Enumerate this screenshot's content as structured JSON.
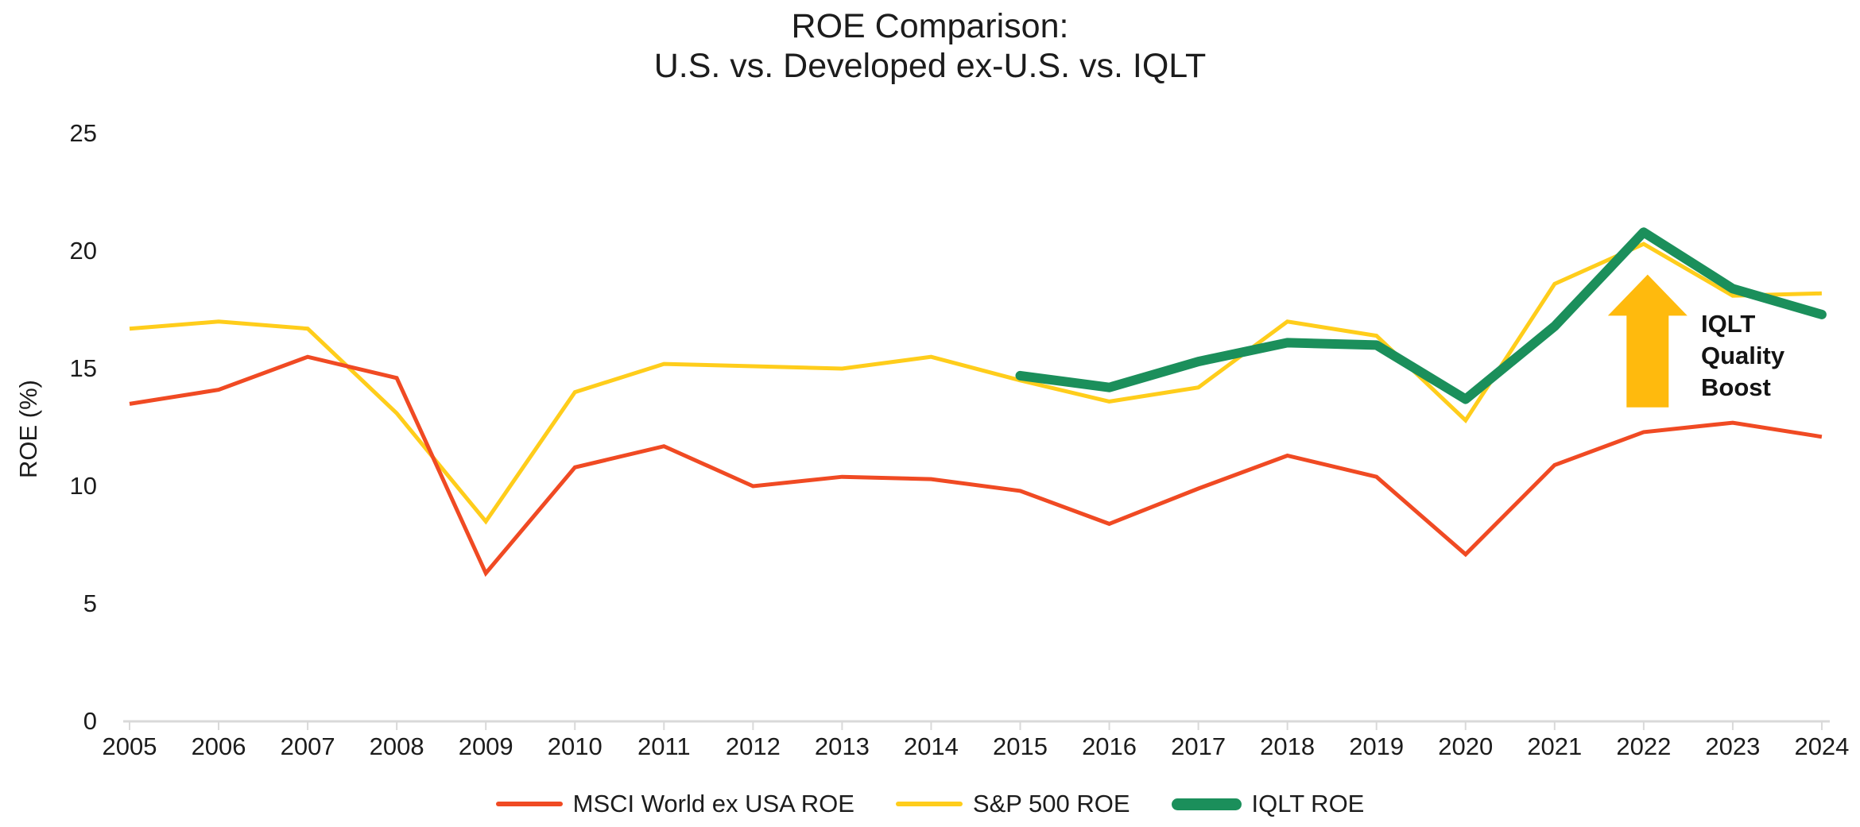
{
  "title": {
    "line1": "ROE Comparison:",
    "line2": "U.S. vs. Developed ex-U.S. vs. IQLT"
  },
  "y_axis": {
    "label": "ROE (%)",
    "ticks": [
      0,
      5,
      10,
      15,
      20,
      25
    ]
  },
  "annotation": {
    "line1": "IQLT",
    "line2": "Quality",
    "line3": "Boost"
  },
  "colors": {
    "msci_line": "#F04A23",
    "sp500_line": "#FFCD1B",
    "iqlt_line": "#1B8F5B",
    "arrow": "#FFBA0D",
    "axis": "#D9D9D9",
    "text": "#1c1c1c"
  },
  "chart_data": {
    "type": "line",
    "title": "ROE Comparison: U.S. vs. Developed ex-U.S. vs. IQLT",
    "xlabel": "",
    "ylabel": "ROE (%)",
    "ylim": [
      0,
      25
    ],
    "y_ticks": [
      0,
      5,
      10,
      15,
      20,
      25
    ],
    "grid": false,
    "legend_position": "bottom",
    "categories": [
      "2005",
      "2006",
      "2007",
      "2008",
      "2009",
      "2010",
      "2011",
      "2012",
      "2013",
      "2014",
      "2015",
      "2016",
      "2017",
      "2018",
      "2019",
      "2020",
      "2021",
      "2022",
      "2023",
      "2024"
    ],
    "series": [
      {
        "name": "S&P 500 ROE",
        "color": "#FFCD1B",
        "stroke_width": 5,
        "values": [
          16.7,
          17.0,
          16.7,
          13.1,
          8.5,
          14.0,
          15.2,
          15.1,
          15.0,
          15.5,
          14.5,
          13.6,
          14.2,
          17.0,
          16.4,
          12.8,
          18.6,
          20.3,
          18.1,
          18.2
        ]
      },
      {
        "name": "MSCI World ex USA ROE",
        "color": "#F04A23",
        "stroke_width": 5,
        "values": [
          13.5,
          14.1,
          15.5,
          14.6,
          6.3,
          10.8,
          11.7,
          10.0,
          10.4,
          10.3,
          9.8,
          8.4,
          9.9,
          11.3,
          10.4,
          7.1,
          10.9,
          12.3,
          12.7,
          12.1
        ]
      },
      {
        "name": "IQLT ROE",
        "color": "#1B8F5B",
        "stroke_width": 12,
        "values": [
          null,
          null,
          null,
          null,
          null,
          null,
          null,
          null,
          null,
          null,
          14.7,
          14.2,
          15.3,
          16.1,
          16.0,
          13.7,
          16.8,
          20.8,
          18.4,
          17.3
        ]
      }
    ],
    "legend_order": [
      "MSCI World ex USA ROE",
      "S&P 500 ROE",
      "IQLT ROE"
    ],
    "annotation": {
      "text": "IQLT Quality Boost",
      "arrow_color": "#FFBA0D",
      "at_category": "2022"
    }
  }
}
